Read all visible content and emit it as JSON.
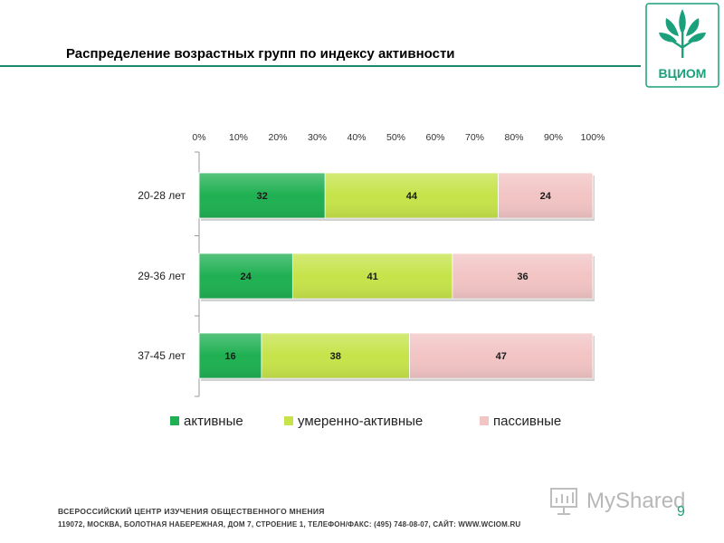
{
  "header": {
    "title": "Распределение возрастных групп по индексу активности"
  },
  "logo": {
    "text": "ВЦИОМ",
    "color": "#1aa07a"
  },
  "chart_data": {
    "type": "bar",
    "orientation": "horizontal",
    "stacked": true,
    "percent": true,
    "categories": [
      "20-28 лет",
      "29-36 лет",
      "37-45 лет"
    ],
    "series": [
      {
        "name": "активные",
        "values": [
          32,
          24,
          16
        ],
        "color": "#1fb052"
      },
      {
        "name": "умеренно-активные",
        "values": [
          44,
          41,
          38
        ],
        "color": "#c6e34a"
      },
      {
        "name": "пассивные",
        "values": [
          24,
          36,
          47
        ],
        "color": "#f2c4c4"
      }
    ],
    "xaxis_ticks": [
      "0%",
      "10%",
      "20%",
      "30%",
      "40%",
      "50%",
      "60%",
      "70%",
      "80%",
      "90%",
      "100%"
    ],
    "xlim": [
      0,
      100
    ],
    "xaxis_position": "top",
    "legend_position": "bottom",
    "grid": false
  },
  "footer": {
    "line1": "ВСЕРОССИЙСКИЙ ЦЕНТР ИЗУЧЕНИЯ ОБЩЕСТВЕННОГО МНЕНИЯ",
    "line2": "119072, МОСКВА, БОЛОТНАЯ НАБЕРЕЖНАЯ, ДОМ 7, СТРОЕНИЕ 1, ТЕЛЕФОН/ФАКС: (495) 748-08-07, САЙТ: WWW.WCIOM.RU",
    "page_number": "9"
  },
  "watermark": {
    "text": "MyShared"
  }
}
